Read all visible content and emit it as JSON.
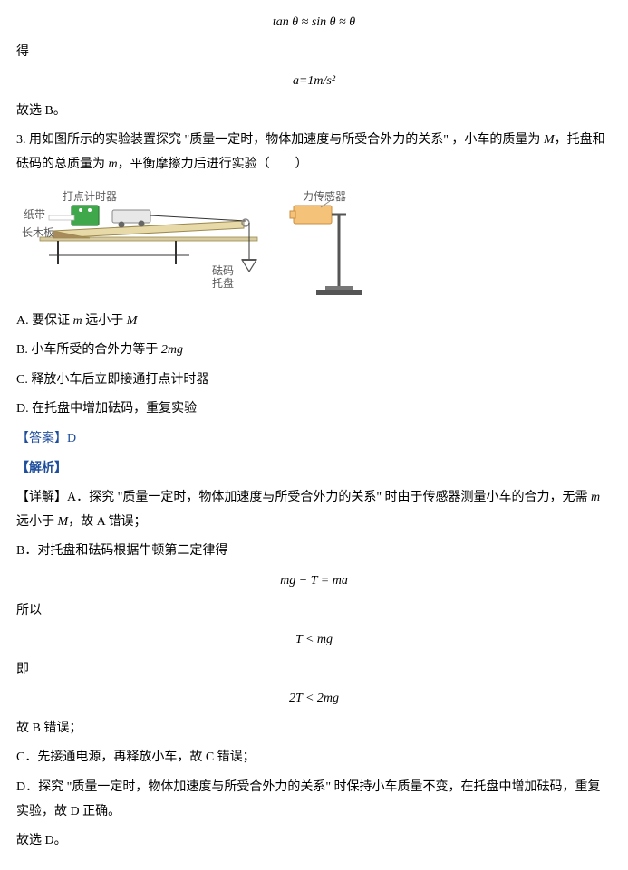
{
  "top_formula": "tan θ ≈ sin θ ≈ θ",
  "de": "得",
  "accel_formula": "a=1m/s²",
  "gx_b": "故选 B。",
  "q3_stem_1": "3. 用如图所示的实验装置探究 \"质量一定时，物体加速度与所受合外力的关系\" ，小车的质量为 ",
  "q3_stem_M": "M",
  "q3_stem_2": "，托盘和砝码的总质量为 ",
  "q3_stem_m": "m",
  "q3_stem_3": "，平衡摩擦力后进行实验（　　）",
  "diag_labels": {
    "timer": "打点计时器",
    "tape": "纸带",
    "board": "长木板",
    "weights": "砝码\n托盘",
    "sensor": "力传感器"
  },
  "optA_text": "A. 要保证 m 远小于 M",
  "optB_text": "B. 小车所受的合外力等于 2mg",
  "optC_text": "C. 释放小车后立即接通打点计时器",
  "optD_text": "D. 在托盘中增加砝码，重复实验",
  "answer_label": "【答案】D",
  "analysis_label": "【解析】",
  "detail_A_1": "【详解】A．探究 \"质量一定时，物体加速度与所受合外力的关系\" 时由于传感器测量小车的合力，无需 ",
  "detail_A_m": "m",
  "detail_A_2": " 远小于 ",
  "detail_A_M": "M",
  "detail_A_3": "，故 A 错误；",
  "detail_B": "B．对托盘和砝码根据牛顿第二定律得",
  "eq1": "mg − T = ma",
  "suoyi": "所以",
  "eq2": "T < mg",
  "ji": "即",
  "eq3": "2T < 2mg",
  "detail_B2": "故 B 错误；",
  "detail_C": "C．先接通电源，再释放小车，故 C 错误；",
  "detail_D": "D．探究 \"质量一定时，物体加速度与所受合外力的关系\" 时保持小车质量不变，在托盘中增加砝码，重复实验，故 D 正确。",
  "gx_d": "故选 D。",
  "diagram_colors": {
    "board_fill": "#e8d9a8",
    "board_stroke": "#9c8a50",
    "timer_fill": "#3fa84a",
    "timer_stroke": "#2d7d36",
    "cart_fill": "#e8e8e8",
    "cart_stroke": "#888888",
    "sensor_fill": "#f5c27a",
    "sensor_stroke": "#c98e3f",
    "pulley_stroke": "#888888",
    "stand_stroke": "#555555",
    "string": "#333333",
    "base_fill": "#a88b5a"
  }
}
